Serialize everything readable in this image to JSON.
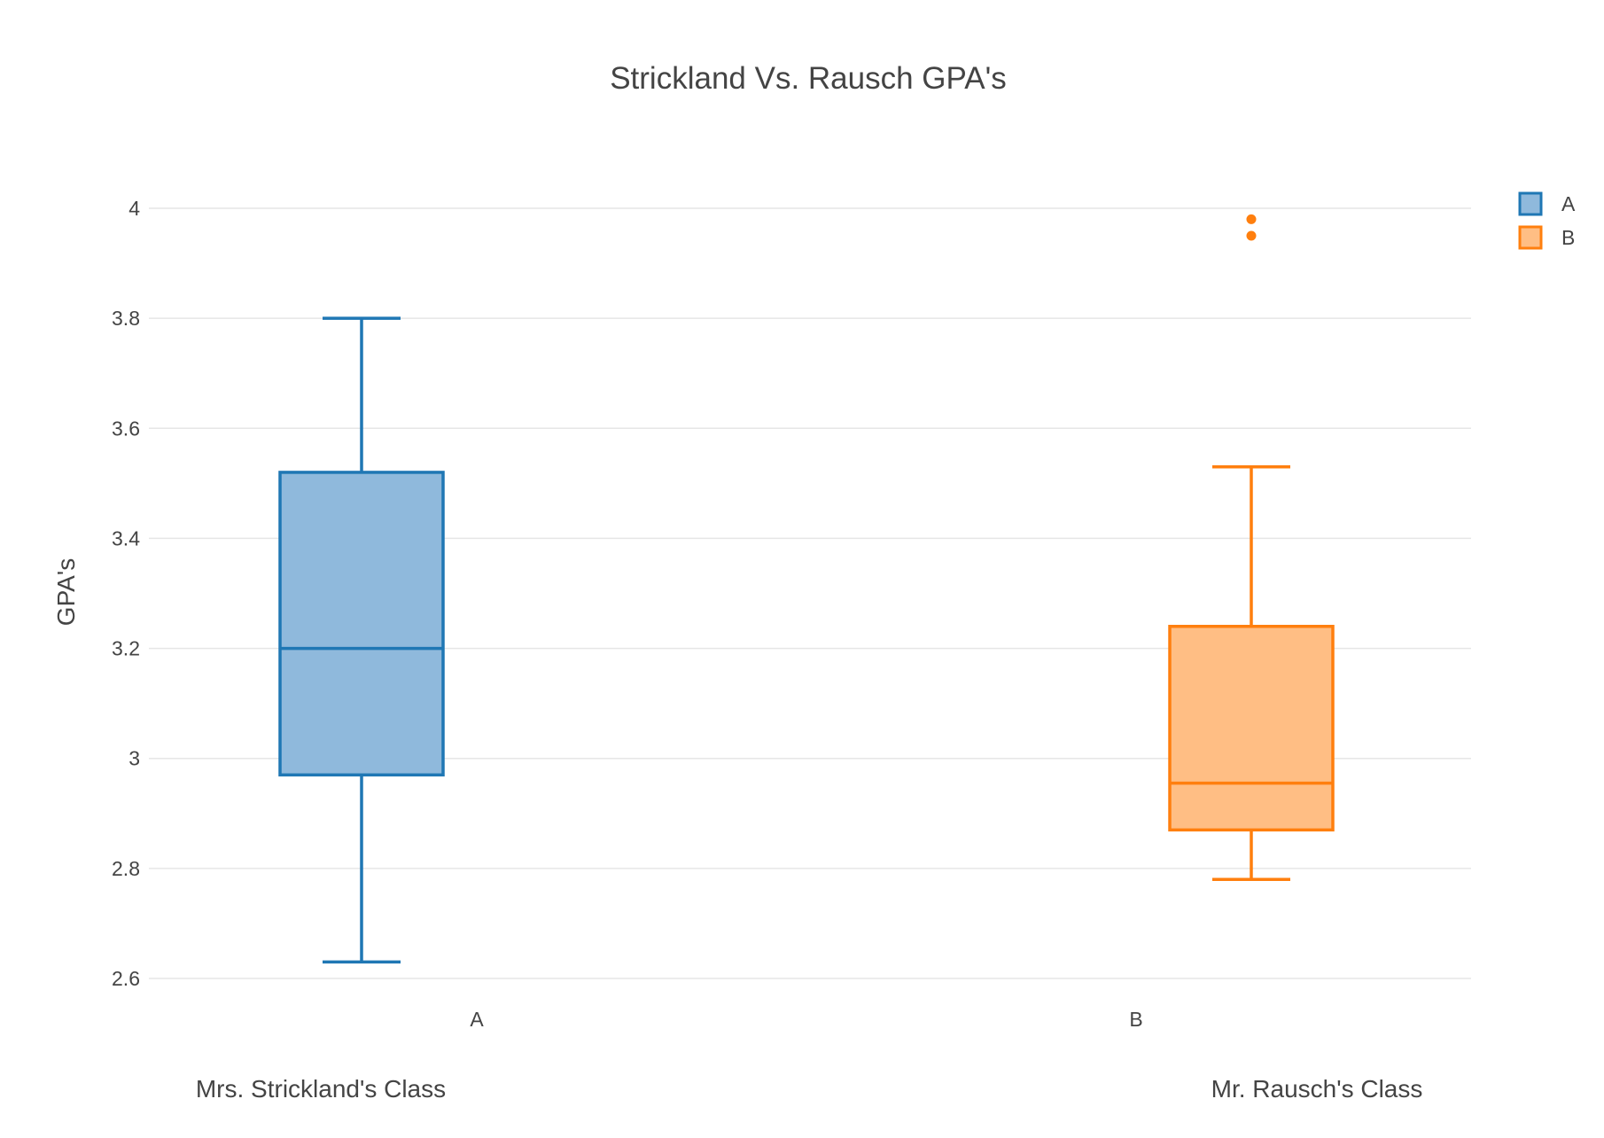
{
  "chart_data": {
    "type": "box",
    "title": "Strickland Vs. Rausch GPA's",
    "xlabel": "",
    "ylabel": "GPA's",
    "ylim": [
      2.55,
      4.07
    ],
    "yticks": [
      2.6,
      2.8,
      3,
      3.2,
      3.4,
      3.6,
      3.8,
      4
    ],
    "ytick_labels": [
      "2.6",
      "2.8",
      "3",
      "3.2",
      "3.4",
      "3.6",
      "3.8",
      "4"
    ],
    "grid": true,
    "legend_position": "top-right",
    "categories": [
      "A",
      "B"
    ],
    "series": [
      {
        "name": "A",
        "color": "#1f77b4",
        "fill": "#8fb9dc",
        "min": 2.63,
        "q1": 2.97,
        "median": 3.2,
        "q3": 3.52,
        "max": 3.8,
        "outliers": []
      },
      {
        "name": "B",
        "color": "#ff7f0e",
        "fill": "#ffbe84",
        "min": 2.78,
        "q1": 2.87,
        "median": 2.955,
        "q3": 3.24,
        "max": 3.53,
        "outliers": [
          3.95,
          3.98
        ]
      }
    ],
    "annotations": [
      "Mrs. Strickland's Class",
      "Mr. Rausch's Class"
    ]
  }
}
